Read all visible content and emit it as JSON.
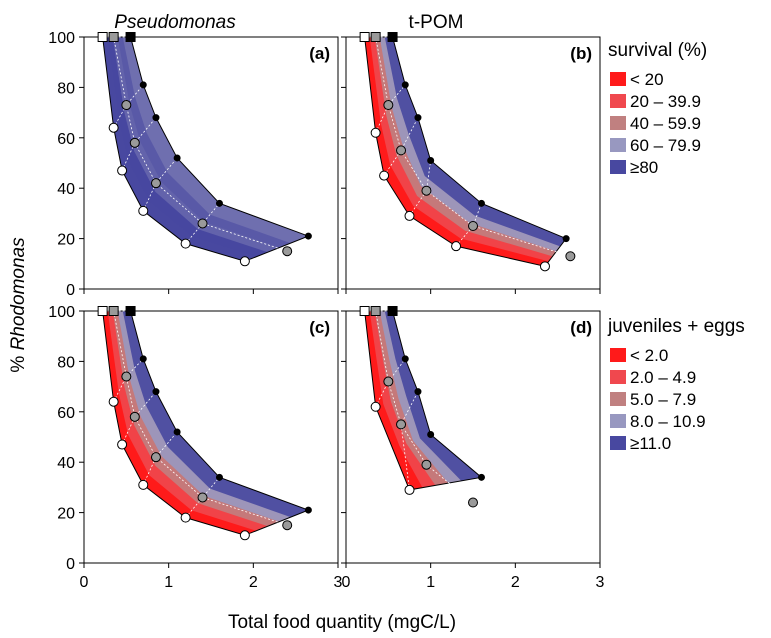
{
  "figure": {
    "column_titles": [
      "Pseudomonas",
      "t-POM"
    ],
    "xlabel": "Total food quantity (mgC/L)",
    "ylabel_prefix": "% ",
    "ylabel_italic": "Rhodomonas"
  },
  "legends": [
    {
      "title": "survival (%)",
      "entries": [
        "< 20",
        "20 – 39.9",
        "40 – 59.9",
        "60 – 79.9",
        "≥80"
      ],
      "colors": [
        "#ff1a1a",
        "#f0484e",
        "#c08080",
        "#9898c0",
        "#4848a0"
      ]
    },
    {
      "title": "juveniles + eggs",
      "entries": [
        "< 2.0",
        "2.0 – 4.9",
        "5.0 – 7.9",
        "8.0 – 10.9",
        "≥11.0"
      ],
      "colors": [
        "#ff1a1a",
        "#f0484e",
        "#c08080",
        "#9898c0",
        "#4848a0"
      ]
    }
  ],
  "chart_data": [
    {
      "type": "scatter",
      "panel": "(a)",
      "title": "Pseudomonas",
      "metric": "survival (%)",
      "xlim": [
        0,
        3
      ],
      "ylim": [
        0,
        100
      ],
      "xticks": [
        0,
        1,
        2,
        3
      ],
      "yticks": [
        0,
        20,
        40,
        60,
        80,
        100
      ],
      "points": {
        "white": [
          [
            0.22,
            100
          ],
          [
            0.35,
            64
          ],
          [
            0.45,
            47
          ],
          [
            0.7,
            31
          ],
          [
            1.2,
            18
          ],
          [
            1.9,
            11
          ]
        ],
        "grey": [
          [
            0.35,
            100
          ],
          [
            0.5,
            73
          ],
          [
            0.6,
            58
          ],
          [
            0.85,
            42
          ],
          [
            1.4,
            26
          ],
          [
            2.4,
            15
          ]
        ],
        "black": [
          [
            0.55,
            100
          ],
          [
            0.7,
            81
          ],
          [
            0.85,
            68
          ],
          [
            1.1,
            52
          ],
          [
            1.6,
            34
          ],
          [
            2.65,
            21
          ]
        ]
      }
    },
    {
      "type": "scatter",
      "panel": "(b)",
      "title": "t-POM",
      "metric": "survival (%)",
      "xlim": [
        0,
        3
      ],
      "ylim": [
        0,
        100
      ],
      "xticks": [
        0,
        1,
        2,
        3
      ],
      "yticks": [
        0,
        20,
        40,
        60,
        80,
        100
      ],
      "points": {
        "white": [
          [
            0.22,
            100
          ],
          [
            0.35,
            62
          ],
          [
            0.45,
            45
          ],
          [
            0.75,
            29
          ],
          [
            1.3,
            17
          ],
          [
            2.35,
            9
          ]
        ],
        "grey": [
          [
            0.35,
            100
          ],
          [
            0.5,
            73
          ],
          [
            0.65,
            55
          ],
          [
            0.95,
            39
          ],
          [
            1.5,
            25
          ],
          [
            2.65,
            13
          ]
        ],
        "black": [
          [
            0.55,
            100
          ],
          [
            0.7,
            81
          ],
          [
            0.85,
            68
          ],
          [
            1.0,
            51
          ],
          [
            1.6,
            34
          ],
          [
            2.6,
            20
          ]
        ]
      }
    },
    {
      "type": "scatter",
      "panel": "(c)",
      "title": "",
      "metric": "juveniles + eggs",
      "xlim": [
        0,
        3
      ],
      "ylim": [
        0,
        100
      ],
      "xticks": [
        0,
        1,
        2,
        3
      ],
      "yticks": [
        0,
        20,
        40,
        60,
        80,
        100
      ],
      "points": {
        "white": [
          [
            0.22,
            100
          ],
          [
            0.35,
            64
          ],
          [
            0.45,
            47
          ],
          [
            0.7,
            31
          ],
          [
            1.2,
            18
          ],
          [
            1.9,
            11
          ]
        ],
        "grey": [
          [
            0.35,
            100
          ],
          [
            0.5,
            74
          ],
          [
            0.6,
            58
          ],
          [
            0.85,
            42
          ],
          [
            1.4,
            26
          ],
          [
            2.4,
            15
          ]
        ],
        "black": [
          [
            0.55,
            100
          ],
          [
            0.7,
            81
          ],
          [
            0.85,
            68
          ],
          [
            1.1,
            52
          ],
          [
            1.6,
            34
          ],
          [
            2.65,
            21
          ]
        ]
      }
    },
    {
      "type": "scatter",
      "panel": "(d)",
      "title": "",
      "metric": "juveniles + eggs",
      "xlim": [
        0,
        3
      ],
      "ylim": [
        0,
        100
      ],
      "xticks": [
        0,
        1,
        2,
        3
      ],
      "yticks": [
        0,
        20,
        40,
        60,
        80,
        100
      ],
      "points": {
        "white": [
          [
            0.22,
            100
          ],
          [
            0.35,
            62
          ],
          [
            0.75,
            29
          ]
        ],
        "grey": [
          [
            0.35,
            100
          ],
          [
            0.5,
            72
          ],
          [
            0.65,
            55
          ],
          [
            0.95,
            39
          ],
          [
            1.5,
            24
          ]
        ],
        "black": [
          [
            0.55,
            100
          ],
          [
            0.7,
            81
          ],
          [
            0.85,
            68
          ],
          [
            1.0,
            51
          ],
          [
            1.6,
            34
          ]
        ]
      }
    }
  ]
}
